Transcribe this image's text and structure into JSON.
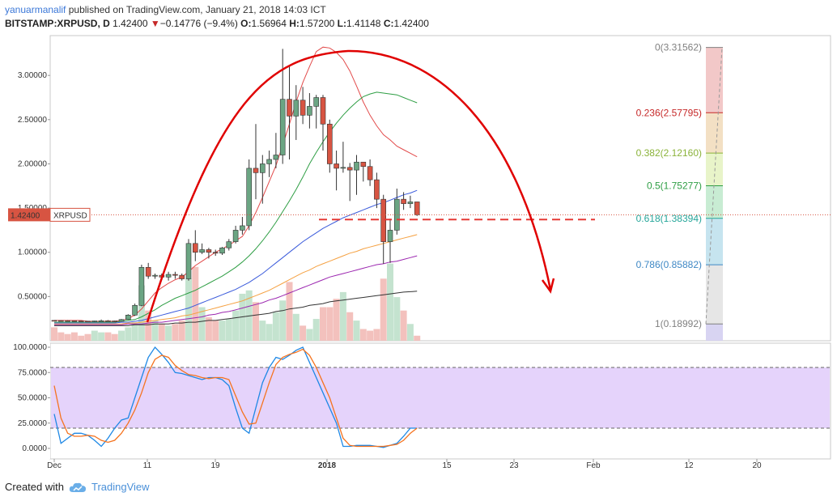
{
  "header": {
    "author": "yanuarmanalif",
    "published_text": "published on TradingView.com, January 21, 2018 14:03 ICT"
  },
  "symbol_line": {
    "symbol": "BITSTAMP:XRPUSD, D",
    "last": "1.42400",
    "arrow": "▼",
    "change": "−0.14776 (−9.4%)",
    "o_label": "O:",
    "open": "1.56964",
    "h_label": "H:",
    "high": "1.57200",
    "l_label": "L:",
    "low": "1.41148",
    "c_label": "C:",
    "close": "1.42400"
  },
  "price_tag": {
    "value": "1.42400",
    "symbol": "XRPUSD"
  },
  "footer": {
    "created_with": "Created with",
    "brand": "TradingView"
  },
  "colors": {
    "up": "#6ba583",
    "down": "#d75442",
    "up_volume": "#c4e3cf",
    "down_volume": "#f3c1bd",
    "fib_0": "#808080",
    "fib_236": "#c62828",
    "fib_382": "#8bb33a",
    "fib_5": "#2e9e44",
    "fib_618": "#26a69a",
    "fib_786": "#3f88c5",
    "fib_1": "#808080",
    "stoch_band": "#e5d3fb",
    "stoch_k": "#1e88e5",
    "stoch_d": "#f5731f"
  },
  "chart_data": [
    {
      "type": "candlestick",
      "title": "BITSTAMP:XRPUSD, D",
      "ylim": [
        0.0,
        3.45
      ],
      "y_ticks": [
        "3.00000",
        "2.50000",
        "2.00000",
        "1.50000",
        "1.00000",
        "0.50000"
      ],
      "x_ticks": [
        "Dec",
        "11",
        "19",
        "2018",
        "15",
        "23",
        "Feb",
        "12",
        "20"
      ],
      "candles": [
        {
          "date": "2017-12-01",
          "o": 0.23,
          "h": 0.232,
          "l": 0.226,
          "c": 0.228
        },
        {
          "date": "2017-12-02",
          "o": 0.228,
          "h": 0.231,
          "l": 0.225,
          "c": 0.227
        },
        {
          "date": "2017-12-03",
          "o": 0.227,
          "h": 0.232,
          "l": 0.224,
          "c": 0.226
        },
        {
          "date": "2017-12-04",
          "o": 0.226,
          "h": 0.228,
          "l": 0.221,
          "c": 0.224
        },
        {
          "date": "2017-12-05",
          "o": 0.224,
          "h": 0.227,
          "l": 0.22,
          "c": 0.222
        },
        {
          "date": "2017-12-06",
          "o": 0.222,
          "h": 0.224,
          "l": 0.214,
          "c": 0.218
        },
        {
          "date": "2017-12-07",
          "o": 0.218,
          "h": 0.226,
          "l": 0.21,
          "c": 0.224
        },
        {
          "date": "2017-12-08",
          "o": 0.224,
          "h": 0.24,
          "l": 0.216,
          "c": 0.226
        },
        {
          "date": "2017-12-09",
          "o": 0.226,
          "h": 0.234,
          "l": 0.22,
          "c": 0.224
        },
        {
          "date": "2017-12-10",
          "o": 0.224,
          "h": 0.228,
          "l": 0.218,
          "c": 0.22
        },
        {
          "date": "2017-12-11",
          "o": 0.22,
          "h": 0.246,
          "l": 0.218,
          "c": 0.24
        },
        {
          "date": "2017-12-12",
          "o": 0.24,
          "h": 0.3,
          "l": 0.236,
          "c": 0.29
        },
        {
          "date": "2017-12-13",
          "o": 0.29,
          "h": 0.42,
          "l": 0.28,
          "c": 0.4
        },
        {
          "date": "2017-12-14",
          "o": 0.4,
          "h": 0.86,
          "l": 0.39,
          "c": 0.83
        },
        {
          "date": "2017-12-15",
          "o": 0.83,
          "h": 0.88,
          "l": 0.7,
          "c": 0.73
        },
        {
          "date": "2017-12-16",
          "o": 0.73,
          "h": 0.76,
          "l": 0.7,
          "c": 0.74
        },
        {
          "date": "2017-12-17",
          "o": 0.74,
          "h": 0.76,
          "l": 0.69,
          "c": 0.72
        },
        {
          "date": "2017-12-18",
          "o": 0.72,
          "h": 0.78,
          "l": 0.68,
          "c": 0.75
        },
        {
          "date": "2017-12-19",
          "o": 0.75,
          "h": 0.78,
          "l": 0.7,
          "c": 0.74
        },
        {
          "date": "2017-12-20",
          "o": 0.74,
          "h": 0.76,
          "l": 0.68,
          "c": 0.7
        },
        {
          "date": "2017-12-21",
          "o": 0.7,
          "h": 1.15,
          "l": 0.68,
          "c": 1.1
        },
        {
          "date": "2017-12-22",
          "o": 1.1,
          "h": 1.25,
          "l": 0.9,
          "c": 1.0
        },
        {
          "date": "2017-12-23",
          "o": 1.0,
          "h": 1.1,
          "l": 0.98,
          "c": 1.03
        },
        {
          "date": "2017-12-24",
          "o": 1.03,
          "h": 1.05,
          "l": 0.93,
          "c": 1.0
        },
        {
          "date": "2017-12-25",
          "o": 1.0,
          "h": 1.03,
          "l": 0.96,
          "c": 0.99
        },
        {
          "date": "2017-12-26",
          "o": 0.99,
          "h": 1.06,
          "l": 0.97,
          "c": 1.05
        },
        {
          "date": "2017-12-27",
          "o": 1.05,
          "h": 1.15,
          "l": 1.02,
          "c": 1.12
        },
        {
          "date": "2017-12-28",
          "o": 1.12,
          "h": 1.3,
          "l": 1.1,
          "c": 1.25
        },
        {
          "date": "2017-12-29",
          "o": 1.25,
          "h": 1.4,
          "l": 1.2,
          "c": 1.3
        },
        {
          "date": "2017-12-30",
          "o": 1.3,
          "h": 2.05,
          "l": 1.25,
          "c": 1.95
        },
        {
          "date": "2017-12-31",
          "o": 1.95,
          "h": 2.45,
          "l": 1.6,
          "c": 1.9
        },
        {
          "date": "2018-01-01",
          "o": 1.9,
          "h": 2.1,
          "l": 1.55,
          "c": 2.0
        },
        {
          "date": "2018-01-02",
          "o": 2.0,
          "h": 2.15,
          "l": 1.85,
          "c": 2.05
        },
        {
          "date": "2018-01-03",
          "o": 2.05,
          "h": 2.35,
          "l": 1.95,
          "c": 2.1
        },
        {
          "date": "2018-01-04",
          "o": 2.1,
          "h": 3.3,
          "l": 2.0,
          "c": 2.73
        },
        {
          "date": "2018-01-05",
          "o": 2.73,
          "h": 3.1,
          "l": 2.05,
          "c": 2.54
        },
        {
          "date": "2018-01-06",
          "o": 2.54,
          "h": 2.89,
          "l": 2.27,
          "c": 2.72
        },
        {
          "date": "2018-01-07",
          "o": 2.72,
          "h": 2.87,
          "l": 2.45,
          "c": 2.55
        },
        {
          "date": "2018-01-08",
          "o": 2.55,
          "h": 2.8,
          "l": 2.4,
          "c": 2.65
        },
        {
          "date": "2018-01-09",
          "o": 2.65,
          "h": 2.78,
          "l": 2.4,
          "c": 2.75
        },
        {
          "date": "2018-01-10",
          "o": 2.75,
          "h": 2.78,
          "l": 2.15,
          "c": 2.45
        },
        {
          "date": "2018-01-11",
          "o": 2.45,
          "h": 2.5,
          "l": 1.9,
          "c": 2.0
        },
        {
          "date": "2018-01-12",
          "o": 2.0,
          "h": 2.15,
          "l": 1.7,
          "c": 1.95
        },
        {
          "date": "2018-01-13",
          "o": 1.95,
          "h": 2.25,
          "l": 1.9,
          "c": 1.96
        },
        {
          "date": "2018-01-14",
          "o": 1.96,
          "h": 2.01,
          "l": 1.58,
          "c": 1.93
        },
        {
          "date": "2018-01-15",
          "o": 1.93,
          "h": 2.1,
          "l": 1.65,
          "c": 2.02
        },
        {
          "date": "2018-01-16",
          "o": 2.02,
          "h": 2.02,
          "l": 1.8,
          "c": 1.97
        },
        {
          "date": "2018-01-17",
          "o": 1.97,
          "h": 2.05,
          "l": 1.75,
          "c": 1.82
        },
        {
          "date": "2018-01-18",
          "o": 1.82,
          "h": 1.9,
          "l": 1.5,
          "c": 1.6
        },
        {
          "date": "2018-01-19",
          "o": 1.6,
          "h": 1.65,
          "l": 0.87,
          "c": 1.12
        },
        {
          "date": "2018-01-20",
          "o": 1.12,
          "h": 1.38,
          "l": 0.88,
          "c": 1.25
        },
        {
          "date": "2018-01-21",
          "o": 1.25,
          "h": 1.72,
          "l": 1.2,
          "c": 1.6
        },
        {
          "date": "2018-01-22",
          "o": 1.6,
          "h": 1.68,
          "l": 1.48,
          "c": 1.55
        },
        {
          "date": "2018-01-23",
          "o": 1.55,
          "h": 1.64,
          "l": 1.5,
          "c": 1.57
        },
        {
          "date": "2018-01-24",
          "o": 1.57,
          "h": 1.572,
          "l": 1.411,
          "c": 1.424
        }
      ],
      "volume_relative": [
        0.08,
        0.05,
        0.04,
        0.05,
        0.03,
        0.04,
        0.06,
        0.05,
        0.05,
        0.04,
        0.06,
        0.08,
        0.11,
        0.33,
        0.18,
        0.12,
        0.1,
        0.09,
        0.1,
        0.12,
        0.37,
        0.44,
        0.2,
        0.14,
        0.12,
        0.12,
        0.13,
        0.18,
        0.28,
        0.3,
        0.23,
        0.12,
        0.1,
        0.17,
        0.24,
        0.35,
        0.16,
        0.09,
        0.07,
        0.13,
        0.2,
        0.2,
        0.25,
        0.29,
        0.17,
        0.12,
        0.07,
        0.06,
        0.07,
        0.37,
        0.46,
        0.26,
        0.18,
        0.1,
        0.03
      ],
      "moving_averages": [
        {
          "color": "#e24a4a",
          "values": [
            0.23,
            0.23,
            0.23,
            0.23,
            0.23,
            0.22,
            0.22,
            0.22,
            0.22,
            0.22,
            0.23,
            0.25,
            0.29,
            0.36,
            0.45,
            0.54,
            0.6,
            0.65,
            0.69,
            0.72,
            0.78,
            0.85,
            0.9,
            0.95,
            1.0,
            1.04,
            1.08,
            1.13,
            1.18,
            1.3,
            1.45,
            1.62,
            1.8,
            1.98,
            2.21,
            2.45,
            2.7,
            2.92,
            3.1,
            3.27,
            3.32,
            3.31,
            3.26,
            3.18,
            3.05,
            2.88,
            2.7,
            2.55,
            2.43,
            2.33,
            2.27,
            2.2,
            2.16,
            2.12,
            2.08
          ]
        },
        {
          "color": "#2e9e44",
          "values": [
            0.21,
            0.21,
            0.21,
            0.21,
            0.21,
            0.21,
            0.21,
            0.21,
            0.21,
            0.21,
            0.22,
            0.23,
            0.24,
            0.27,
            0.31,
            0.35,
            0.4,
            0.44,
            0.48,
            0.51,
            0.54,
            0.57,
            0.61,
            0.65,
            0.69,
            0.73,
            0.78,
            0.83,
            0.89,
            0.96,
            1.04,
            1.13,
            1.23,
            1.34,
            1.46,
            1.58,
            1.71,
            1.85,
            2.0,
            2.13,
            2.25,
            2.36,
            2.46,
            2.55,
            2.63,
            2.7,
            2.76,
            2.79,
            2.81,
            2.8,
            2.79,
            2.78,
            2.75,
            2.72,
            2.69
          ]
        },
        {
          "color": "#3b5bdb",
          "values": [
            0.2,
            0.2,
            0.2,
            0.2,
            0.2,
            0.2,
            0.2,
            0.2,
            0.2,
            0.2,
            0.21,
            0.21,
            0.22,
            0.23,
            0.25,
            0.27,
            0.29,
            0.31,
            0.33,
            0.35,
            0.37,
            0.4,
            0.43,
            0.46,
            0.49,
            0.52,
            0.55,
            0.58,
            0.62,
            0.66,
            0.71,
            0.76,
            0.82,
            0.88,
            0.94,
            1.0,
            1.06,
            1.12,
            1.17,
            1.22,
            1.27,
            1.31,
            1.35,
            1.39,
            1.42,
            1.45,
            1.48,
            1.51,
            1.54,
            1.56,
            1.59,
            1.62,
            1.65,
            1.67,
            1.7
          ]
        },
        {
          "color": "#f5a142",
          "values": [
            0.19,
            0.19,
            0.19,
            0.19,
            0.19,
            0.19,
            0.19,
            0.19,
            0.19,
            0.19,
            0.19,
            0.2,
            0.2,
            0.21,
            0.22,
            0.23,
            0.24,
            0.25,
            0.26,
            0.28,
            0.29,
            0.31,
            0.33,
            0.35,
            0.37,
            0.39,
            0.41,
            0.43,
            0.45,
            0.48,
            0.51,
            0.54,
            0.57,
            0.61,
            0.65,
            0.69,
            0.73,
            0.77,
            0.8,
            0.84,
            0.87,
            0.9,
            0.93,
            0.96,
            0.99,
            1.01,
            1.04,
            1.06,
            1.08,
            1.1,
            1.12,
            1.14,
            1.16,
            1.18,
            1.2
          ]
        },
        {
          "color": "#9c27b0",
          "values": [
            0.18,
            0.18,
            0.18,
            0.18,
            0.18,
            0.18,
            0.18,
            0.18,
            0.18,
            0.18,
            0.18,
            0.19,
            0.19,
            0.19,
            0.2,
            0.21,
            0.21,
            0.22,
            0.23,
            0.24,
            0.25,
            0.26,
            0.27,
            0.29,
            0.3,
            0.32,
            0.33,
            0.35,
            0.37,
            0.39,
            0.41,
            0.43,
            0.46,
            0.48,
            0.51,
            0.54,
            0.57,
            0.6,
            0.63,
            0.66,
            0.69,
            0.72,
            0.74,
            0.76,
            0.78,
            0.8,
            0.82,
            0.84,
            0.86,
            0.87,
            0.89,
            0.9,
            0.92,
            0.94,
            0.96
          ]
        },
        {
          "color": "#333333",
          "values": [
            0.17,
            0.17,
            0.17,
            0.17,
            0.17,
            0.17,
            0.17,
            0.17,
            0.17,
            0.17,
            0.17,
            0.17,
            0.18,
            0.18,
            0.18,
            0.19,
            0.19,
            0.19,
            0.2,
            0.2,
            0.21,
            0.21,
            0.22,
            0.23,
            0.23,
            0.24,
            0.25,
            0.26,
            0.27,
            0.28,
            0.29,
            0.3,
            0.31,
            0.33,
            0.34,
            0.36,
            0.37,
            0.38,
            0.4,
            0.41,
            0.42,
            0.44,
            0.45,
            0.46,
            0.47,
            0.48,
            0.49,
            0.5,
            0.51,
            0.52,
            0.53,
            0.54,
            0.55,
            0.555,
            0.56
          ]
        }
      ],
      "fibonacci": [
        {
          "label": "0(3.31562)",
          "level": 3.31562
        },
        {
          "label": "0.236(2.57795)",
          "level": 2.57795
        },
        {
          "label": "0.382(2.12160)",
          "level": 2.1216
        },
        {
          "label": "0.5(1.75277)",
          "level": 1.75277
        },
        {
          "label": "0.618(1.38394)",
          "level": 1.38394
        },
        {
          "label": "0.786(0.85882)",
          "level": 0.85882
        },
        {
          "label": "1(0.18992)",
          "level": 0.18992
        }
      ],
      "horizontal_line_level": 1.37,
      "last_price": 1.424
    },
    {
      "type": "line",
      "ylim": [
        -5,
        105
      ],
      "y_ticks": [
        "100.0000",
        "75.0000",
        "50.0000",
        "25.0000",
        "0.0000"
      ],
      "upper_band": 80,
      "lower_band": 20,
      "series": [
        {
          "values": [
            34,
            5,
            10,
            15,
            15,
            13,
            8,
            2,
            10,
            20,
            28,
            30,
            50,
            70,
            90,
            100,
            93,
            85,
            75,
            74,
            72,
            70,
            68,
            70,
            70,
            68,
            62,
            40,
            20,
            15,
            40,
            65,
            80,
            90,
            88,
            92,
            97,
            100,
            85,
            70,
            55,
            40,
            25,
            2,
            2,
            3,
            3,
            3,
            2,
            1,
            3,
            5,
            12,
            20,
            20
          ]
        },
        {
          "values": [
            62,
            30,
            15,
            12,
            12,
            13,
            12,
            8,
            6,
            8,
            15,
            25,
            38,
            55,
            75,
            88,
            92,
            90,
            82,
            77,
            73,
            72,
            70,
            69,
            70,
            70,
            68,
            52,
            36,
            24,
            25,
            45,
            65,
            83,
            90,
            93,
            95,
            98,
            92,
            80,
            65,
            50,
            30,
            10,
            3,
            2,
            2,
            2,
            2,
            2,
            3,
            4,
            8,
            15,
            20
          ]
        }
      ]
    }
  ]
}
